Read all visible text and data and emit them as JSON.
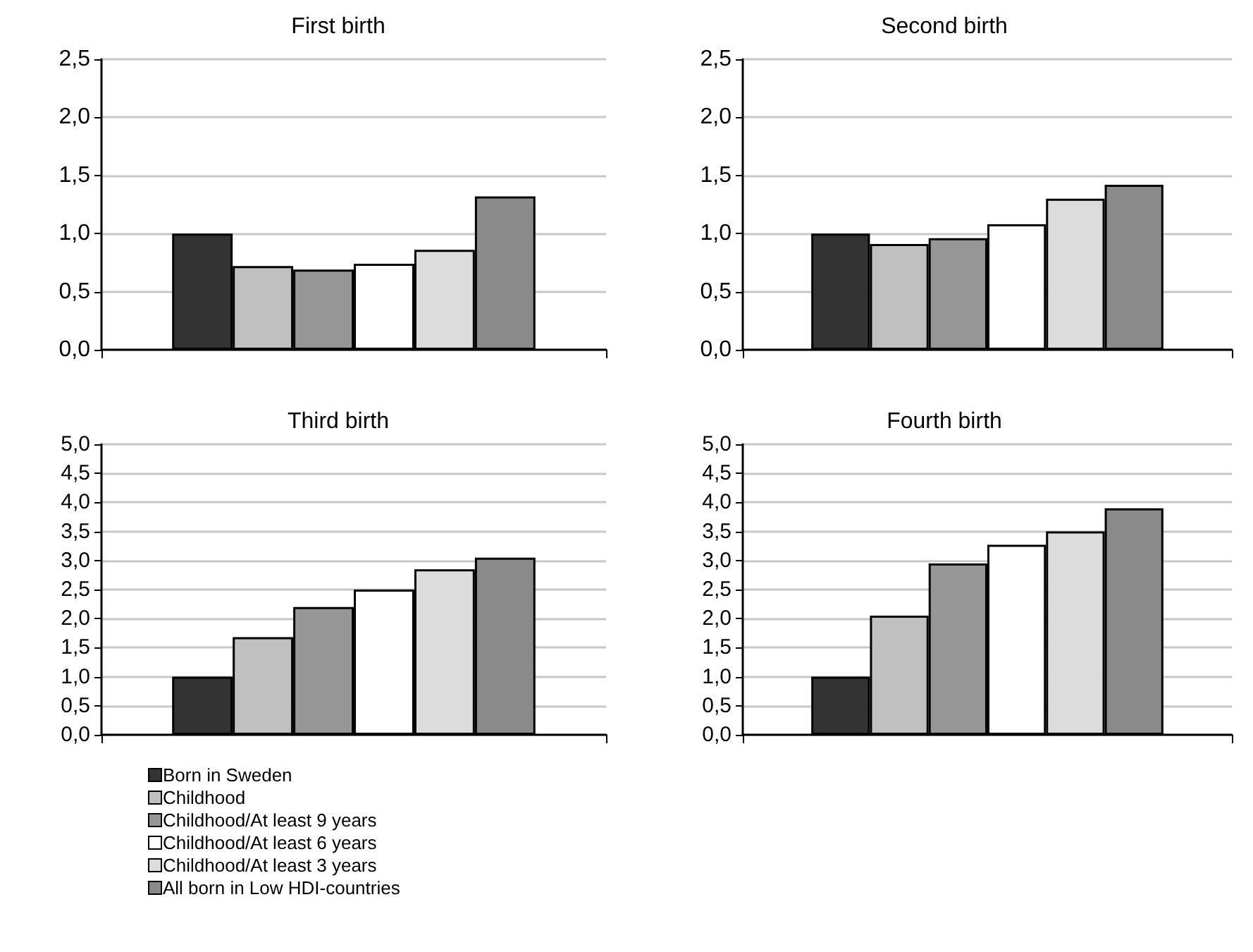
{
  "chart_data": [
    {
      "type": "bar",
      "title": "First birth",
      "categories": [
        null
      ],
      "ylim": [
        0,
        2.5
      ],
      "yticks": [
        {
          "value": 0,
          "label": "0,0"
        },
        {
          "value": 0.5,
          "label": "0,5"
        },
        {
          "value": 1,
          "label": "1,0"
        },
        {
          "value": 1.5,
          "label": "1,5"
        },
        {
          "value": 2,
          "label": "2,0"
        },
        {
          "value": 2.5,
          "label": "2,5"
        }
      ],
      "grid": "y",
      "legend": false,
      "series": [
        {
          "color": "#333333",
          "values": [
            1.0
          ]
        },
        {
          "color": "#c0c0c0",
          "values": [
            0.72
          ]
        },
        {
          "color": "#969696",
          "values": [
            0.69
          ]
        },
        {
          "color": "#ffffff",
          "values": [
            0.74
          ]
        },
        {
          "color": "#dcdcdc",
          "values": [
            0.86
          ]
        },
        {
          "color": "#8a8a8a",
          "values": [
            1.32
          ]
        }
      ]
    },
    {
      "type": "bar",
      "title": "Second birth",
      "categories": [
        null
      ],
      "ylim": [
        0,
        2.5
      ],
      "yticks": [
        {
          "value": 0,
          "label": "0,0"
        },
        {
          "value": 0.5,
          "label": "0,5"
        },
        {
          "value": 1,
          "label": "1,0"
        },
        {
          "value": 1.5,
          "label": "1,5"
        },
        {
          "value": 2,
          "label": "2,0"
        },
        {
          "value": 2.5,
          "label": "2,5"
        }
      ],
      "grid": "y",
      "legend": false,
      "series": [
        {
          "color": "#333333",
          "values": [
            1.0
          ]
        },
        {
          "color": "#c0c0c0",
          "values": [
            0.91
          ]
        },
        {
          "color": "#969696",
          "values": [
            0.96
          ]
        },
        {
          "color": "#ffffff",
          "values": [
            1.08
          ]
        },
        {
          "color": "#dcdcdc",
          "values": [
            1.3
          ]
        },
        {
          "color": "#8a8a8a",
          "values": [
            1.42
          ]
        }
      ]
    },
    {
      "type": "bar",
      "title": "Third birth",
      "categories": [
        null
      ],
      "ylim": [
        0,
        5
      ],
      "yticks": [
        {
          "value": 0,
          "label": "0,0"
        },
        {
          "value": 0.5,
          "label": "0,5"
        },
        {
          "value": 1,
          "label": "1,0"
        },
        {
          "value": 1.5,
          "label": "1,5"
        },
        {
          "value": 2,
          "label": "2,0"
        },
        {
          "value": 2.5,
          "label": "2,5"
        },
        {
          "value": 3,
          "label": "3,0"
        },
        {
          "value": 3.5,
          "label": "3,5"
        },
        {
          "value": 4,
          "label": "4,0"
        },
        {
          "value": 4.5,
          "label": "4,5"
        },
        {
          "value": 5,
          "label": "5,0"
        }
      ],
      "grid": "y",
      "legend": "bottom left",
      "series": [
        {
          "name": "Born in Sweden",
          "color": "#333333",
          "values": [
            1.0
          ]
        },
        {
          "name": "Childhood",
          "color": "#c0c0c0",
          "values": [
            1.68
          ]
        },
        {
          "name": "Childhood/At least 9 years",
          "color": "#969696",
          "values": [
            2.2
          ]
        },
        {
          "name": "Childhood/At least 6 years",
          "color": "#ffffff",
          "values": [
            2.5
          ]
        },
        {
          "name": "Childhood/At least 3 years",
          "color": "#dcdcdc",
          "values": [
            2.85
          ]
        },
        {
          "name": "All born in Low HDI-countries",
          "color": "#8a8a8a",
          "values": [
            3.05
          ]
        }
      ]
    },
    {
      "type": "bar",
      "title": "Fourth birth",
      "categories": [
        null
      ],
      "ylim": [
        0,
        5
      ],
      "yticks": [
        {
          "value": 0,
          "label": "0,0"
        },
        {
          "value": 0.5,
          "label": "0,5"
        },
        {
          "value": 1,
          "label": "1,0"
        },
        {
          "value": 1.5,
          "label": "1,5"
        },
        {
          "value": 2,
          "label": "2,0"
        },
        {
          "value": 2.5,
          "label": "2,5"
        },
        {
          "value": 3,
          "label": "3,0"
        },
        {
          "value": 3.5,
          "label": "3,5"
        },
        {
          "value": 4,
          "label": "4,0"
        },
        {
          "value": 4.5,
          "label": "4,5"
        },
        {
          "value": 5,
          "label": "5,0"
        }
      ],
      "grid": "y",
      "legend": false,
      "series": [
        {
          "color": "#333333",
          "values": [
            1.0
          ]
        },
        {
          "color": "#c0c0c0",
          "values": [
            2.05
          ]
        },
        {
          "color": "#969696",
          "values": [
            2.95
          ]
        },
        {
          "color": "#ffffff",
          "values": [
            3.27
          ]
        },
        {
          "color": "#dcdcdc",
          "values": [
            3.5
          ]
        },
        {
          "color": "#8a8a8a",
          "values": [
            3.9
          ]
        }
      ]
    }
  ]
}
